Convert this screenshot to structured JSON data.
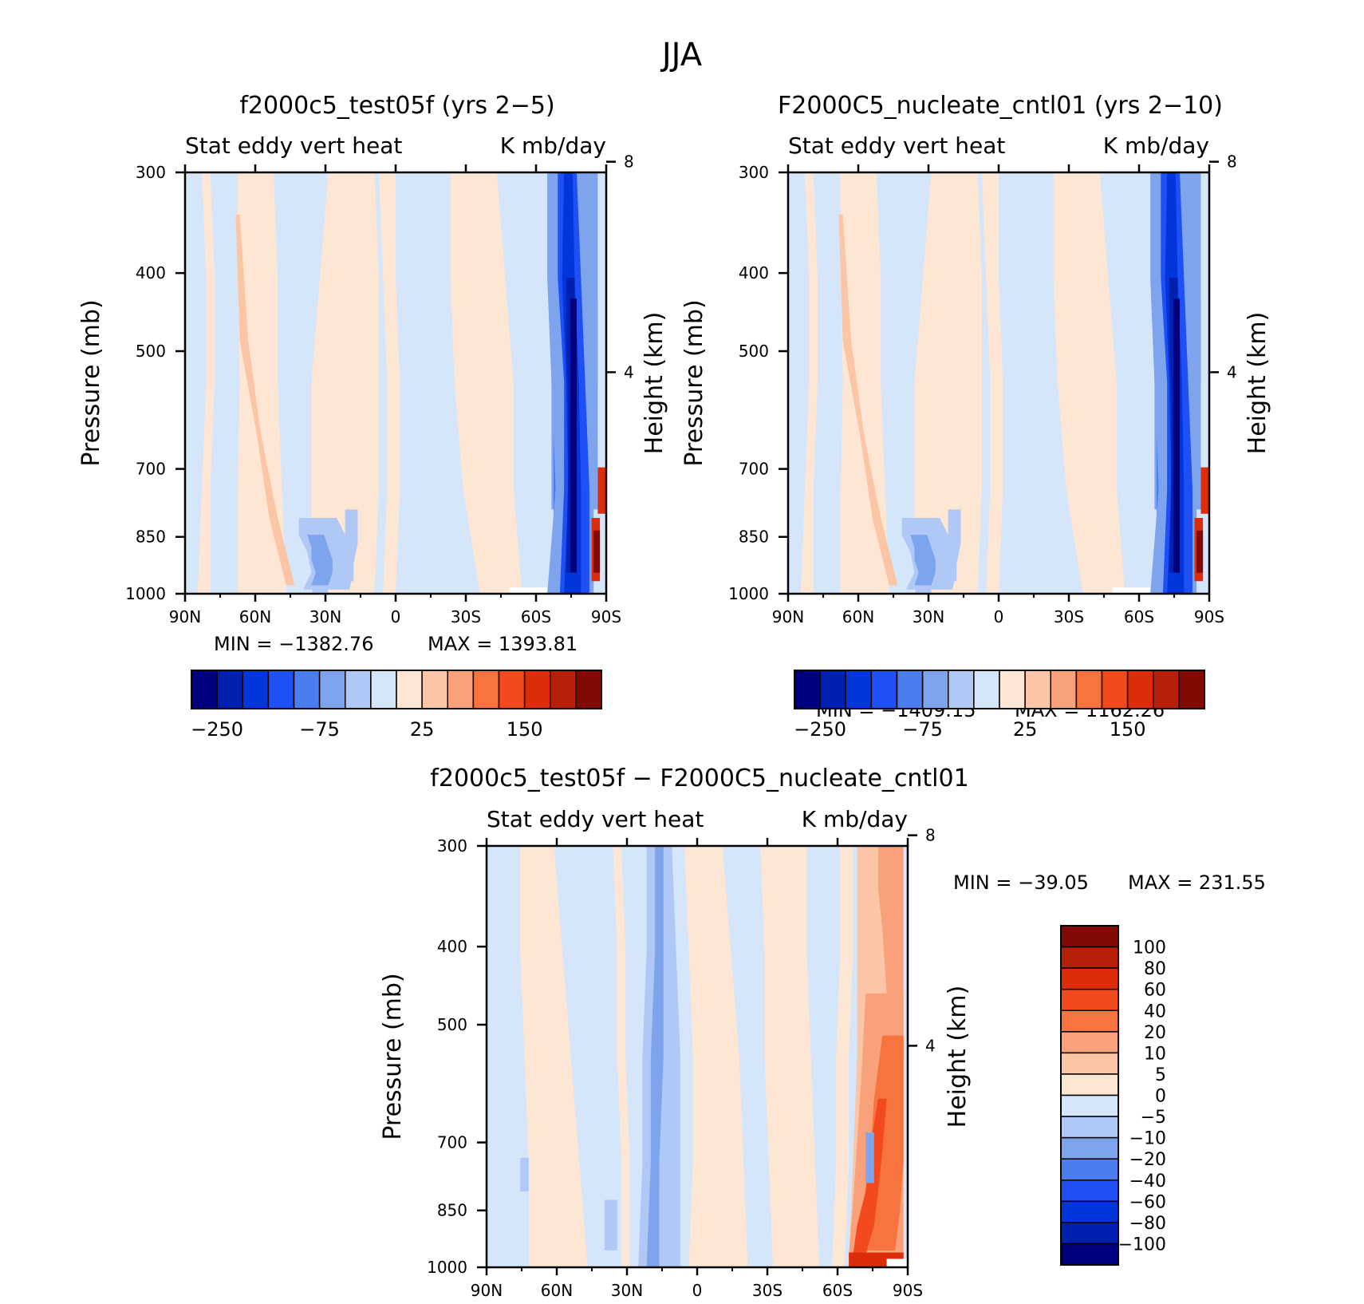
{
  "figure": {
    "title": "JJA"
  },
  "chart_data": [
    {
      "type": "heatmap",
      "panel": "top-left",
      "title": "f2000c5_test05f (yrs 2−5)",
      "left_string": "Stat eddy vert heat",
      "right_string": "K mb/day",
      "xlabel": "",
      "ylabel": "Pressure (mb)",
      "y2label": "Height (km)",
      "x_ticks": [
        "90N",
        "60N",
        "30N",
        "0",
        "30S",
        "60S",
        "90S"
      ],
      "y_ticks": [
        300,
        400,
        500,
        700,
        850,
        1000
      ],
      "y2_ticks": [
        8,
        4
      ],
      "ylim": [
        1000,
        300
      ],
      "min_label": "MIN = −1382.76",
      "max_label": "MAX = 1393.81",
      "min": -1382.76,
      "max": 1393.81,
      "colorbar_labels": [
        "−250",
        "−75",
        "25",
        "150"
      ]
    },
    {
      "type": "heatmap",
      "panel": "top-right",
      "title": "F2000C5_nucleate_cntl01 (yrs 2−10)",
      "left_string": "Stat eddy vert heat",
      "right_string": "K mb/day",
      "xlabel": "",
      "ylabel": "Pressure (mb)",
      "y2label": "Height (km)",
      "x_ticks": [
        "90N",
        "60N",
        "30N",
        "0",
        "30S",
        "60S",
        "90S"
      ],
      "y_ticks": [
        300,
        400,
        500,
        700,
        850,
        1000
      ],
      "y2_ticks": [
        8,
        4
      ],
      "ylim": [
        1000,
        300
      ],
      "min_label": "MIN = −1409.15",
      "max_label": "MAX = 1162.26",
      "min": -1409.15,
      "max": 1162.26,
      "colorbar_labels": [
        "−250",
        "−75",
        "25",
        "150"
      ]
    },
    {
      "type": "heatmap",
      "panel": "bottom",
      "title": "f2000c5_test05f − F2000C5_nucleate_cntl01",
      "left_string": "Stat eddy vert heat",
      "right_string": "K mb/day",
      "xlabel": "",
      "ylabel": "Pressure (mb)",
      "y2label": "Height (km)",
      "x_ticks": [
        "90N",
        "60N",
        "30N",
        "0",
        "30S",
        "60S",
        "90S"
      ],
      "y_ticks": [
        300,
        400,
        500,
        700,
        850,
        1000
      ],
      "y2_ticks": [
        8,
        4
      ],
      "ylim": [
        1000,
        300
      ],
      "min_label": "MIN = −39.05",
      "max_label": "MAX = 231.55",
      "min": -39.05,
      "max": 231.55,
      "colorbar_labels": [
        "100",
        "80",
        "60",
        "40",
        "20",
        "10",
        "5",
        "0",
        "−5",
        "−10",
        "−20",
        "−40",
        "−60",
        "−80",
        "−100"
      ]
    }
  ],
  "colors": {
    "palette": [
      "#00007f",
      "#0020b0",
      "#0036dc",
      "#1e50f5",
      "#4a7df0",
      "#7fa4ee",
      "#b0c8f5",
      "#d6e6fa",
      "#fde6d4",
      "#fcc6a6",
      "#f8a17b",
      "#f7743e",
      "#f24a1c",
      "#dc2c0a",
      "#b61f08",
      "#820a05"
    ],
    "bg_neg": "#d6e6fa",
    "bg_pos": "#fde6d4"
  }
}
